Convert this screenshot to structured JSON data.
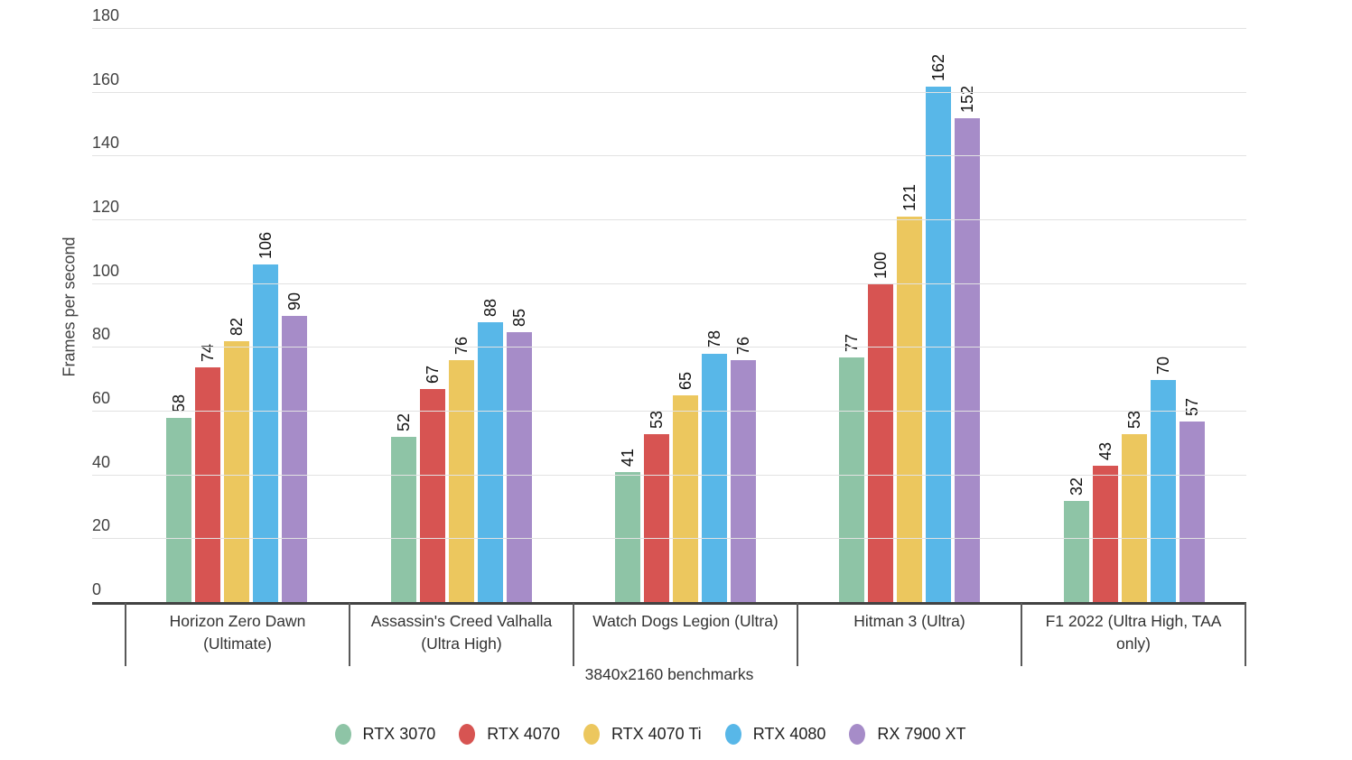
{
  "chart_data": {
    "type": "bar",
    "title": "",
    "xlabel": "3840x2160 benchmarks",
    "ylabel": "Frames per second",
    "ylim": [
      0,
      180
    ],
    "yticks": [
      0,
      20,
      40,
      60,
      80,
      100,
      120,
      140,
      160,
      180
    ],
    "grid": true,
    "legend_position": "bottom",
    "value_labels": "rotated-above-bars",
    "categories": [
      "Horizon Zero Dawn (Ultimate)",
      "Assassin's Creed Valhalla (Ultra High)",
      "Watch Dogs Legion (Ultra)",
      "Hitman 3 (Ultra)",
      "F1 2022 (Ultra High, TAA only)"
    ],
    "series": [
      {
        "name": "RTX 3070",
        "color": "#8ec4a6",
        "values": [
          58,
          52,
          41,
          77,
          32
        ]
      },
      {
        "name": "RTX 4070",
        "color": "#d75452",
        "values": [
          74,
          67,
          53,
          100,
          43
        ]
      },
      {
        "name": "RTX 4070 Ti",
        "color": "#ecc75e",
        "values": [
          82,
          76,
          65,
          121,
          53
        ]
      },
      {
        "name": "RTX 4080",
        "color": "#58b7e8",
        "values": [
          106,
          88,
          78,
          162,
          70
        ]
      },
      {
        "name": "RX 7900 XT",
        "color": "#a68cc8",
        "values": [
          90,
          85,
          76,
          152,
          57
        ]
      }
    ],
    "colors": {
      "background": "#ffffff",
      "gridline": "#e2e2e2",
      "axis_line": "#424242",
      "tick_label": "#424242",
      "category_label": "#333333",
      "value_label": "#111111"
    }
  }
}
